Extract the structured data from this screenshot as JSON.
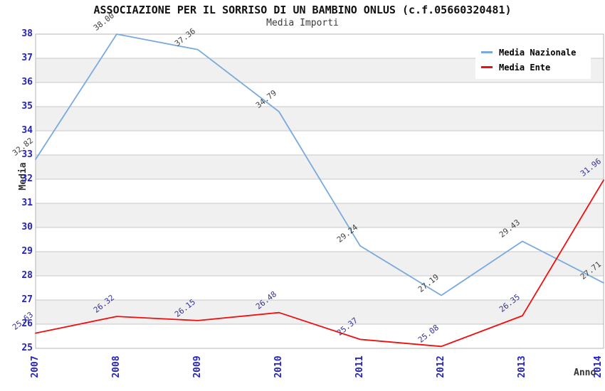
{
  "header": {
    "title": "ASSOCIAZIONE PER IL SORRISO DI UN BAMBINO ONLUS (c.f.05660320481)",
    "subtitle": "Media Importi"
  },
  "chart_data": {
    "type": "line",
    "x_ticks": [
      "2007",
      "2008",
      "2009",
      "2010",
      "2011",
      "2012",
      "2013",
      "2014"
    ],
    "y_ticks": [
      25,
      26,
      27,
      28,
      29,
      30,
      31,
      32,
      33,
      34,
      35,
      36,
      37,
      38
    ],
    "ylim": [
      25,
      38
    ],
    "xlabel": "Anno",
    "ylabel": "Media",
    "grid": "horizontal",
    "legend_position": "top-right",
    "band_colors": [
      "#ffffff",
      "#f0f0f0"
    ],
    "series": [
      {
        "name": "Media Nazionale",
        "color": "#79aade",
        "label_color": "#404040",
        "values": [
          32.82,
          38.0,
          37.36,
          34.79,
          29.24,
          27.19,
          29.43,
          27.71
        ]
      },
      {
        "name": "Media Ente",
        "color": "#ee0f0f",
        "label_color": "#333399",
        "values": [
          25.63,
          26.32,
          26.15,
          26.48,
          25.37,
          25.08,
          26.35,
          31.96
        ]
      }
    ]
  },
  "colors": {
    "tick_label": "#2222cc",
    "grid_line": "#c8c8c8",
    "plot_border": "#b4b4b4",
    "title": "#111111",
    "subtitle": "#3a3a3a",
    "axis_title": "#333333"
  }
}
